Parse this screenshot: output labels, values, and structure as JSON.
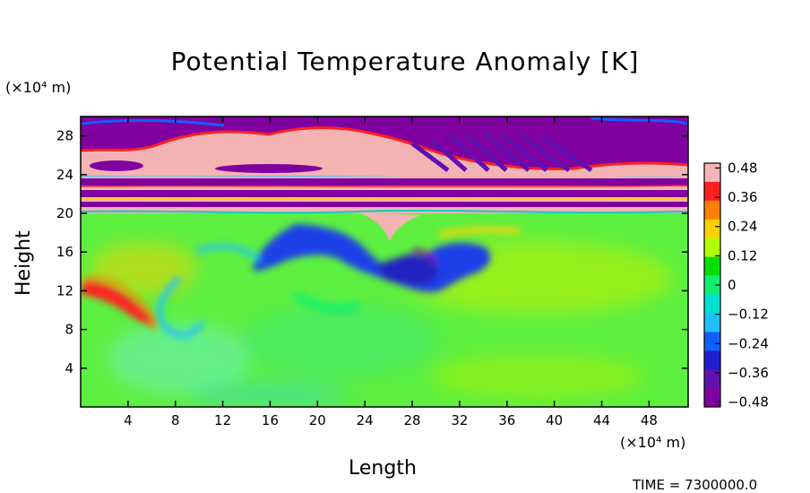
{
  "chart_data": {
    "type": "heatmap",
    "title": "Potential Temperature Anomaly [K]",
    "xlabel": "Length",
    "ylabel": "Height",
    "x_unit": "(×10⁴ m)",
    "y_unit": "(×10⁴ m)",
    "xlim": [
      0,
      51.3
    ],
    "ylim": [
      0,
      30
    ],
    "x_ticks": [
      4,
      8,
      12,
      16,
      20,
      24,
      28,
      32,
      36,
      40,
      44,
      48
    ],
    "y_ticks": [
      4,
      8,
      12,
      16,
      20,
      24,
      28
    ],
    "colorbar": {
      "min": -0.5,
      "max": 0.5,
      "ticks": [
        0.48,
        0.36,
        0.24,
        0.12,
        0,
        -0.12,
        -0.24,
        -0.36,
        -0.48
      ],
      "tick_labels": [
        "0.48",
        "0.36",
        "0.24",
        "0.12",
        "0",
        "−0.12",
        "−0.24",
        "−0.36",
        "−0.48"
      ],
      "colors": [
        "#f5b5b5",
        "#ff2020",
        "#ff8000",
        "#ffd000",
        "#b0ff00",
        "#00e000",
        "#10f070",
        "#00e0d0",
        "#20c0ff",
        "#1060ff",
        "#2020d0",
        "#6010b0",
        "#8000a0"
      ]
    },
    "field_regions": [
      {
        "region": "troposphere 0–19 (×10⁴ m)",
        "value": 0.0
      },
      {
        "region": "striated band 19–26 (×10⁴ m)",
        "values": [
          0.48,
          -0.48
        ]
      },
      {
        "region": "upper layer 26–30 (×10⁴ m)",
        "values": [
          0.48,
          -0.48
        ]
      },
      {
        "region": "cold pool x 16–34, y 11–18 (×10⁴ m)",
        "value": -0.48
      },
      {
        "region": "warm streak x 0–5, y 9–13 (×10⁴ m)",
        "value": 0.36
      }
    ]
  },
  "footer": {
    "time_label": "TIME = 7300000.0"
  }
}
